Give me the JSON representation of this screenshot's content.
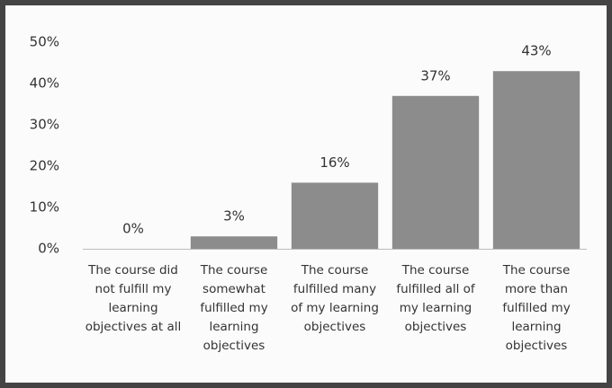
{
  "chart_data": {
    "type": "bar",
    "categories": [
      "The course did not fulfill my learning objectives at all",
      "The course somewhat fulfilled my learning objectives",
      "The course fulfilled many of my learning objectives",
      "The course fulfilled all of my learning objectives",
      "The course more than fulfilled my learning objectives"
    ],
    "values": [
      0,
      3,
      16,
      37,
      43
    ],
    "value_labels": [
      "0%",
      "3%",
      "16%",
      "37%",
      "43%"
    ],
    "color": "#8c8c8c",
    "ylim": [
      0,
      50
    ],
    "yticks": [
      {
        "value": 0,
        "label": "0%"
      },
      {
        "value": 10,
        "label": "10%"
      },
      {
        "value": 20,
        "label": "20%"
      },
      {
        "value": 30,
        "label": "30%"
      },
      {
        "value": 40,
        "label": "40%"
      },
      {
        "value": 50,
        "label": "50%"
      }
    ],
    "grid": false
  }
}
